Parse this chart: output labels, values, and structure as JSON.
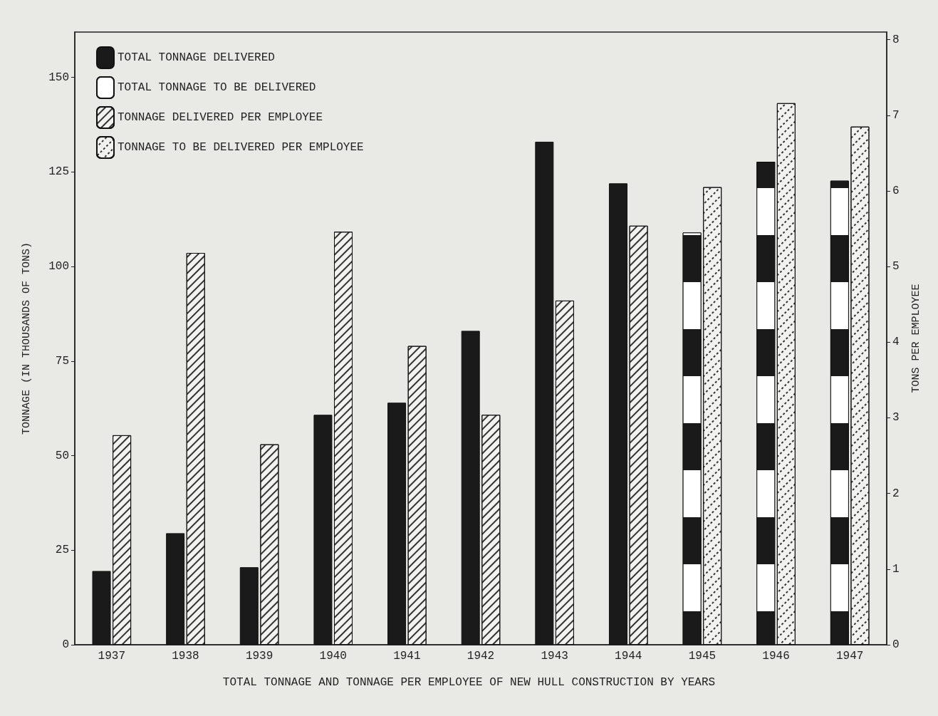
{
  "chart_data": {
    "type": "bar",
    "title": "TOTAL TONNAGE AND TONNAGE PER EMPLOYEE OF NEW HULL CONSTRUCTION BY YEARS",
    "ylabel": "TONNAGE (IN THOUSANDS OF TONS)",
    "y2label": "TONS PER EMPLOYEE",
    "categories": [
      "1937",
      "1938",
      "1939",
      "1940",
      "1941",
      "1942",
      "1943",
      "1944",
      "1945",
      "1946",
      "1947"
    ],
    "series": [
      {
        "name": "TOTAL TONNAGE DELIVERED",
        "color": "#1a1a1a",
        "values": [
          19.5,
          29.5,
          20.5,
          60.8,
          64,
          83,
          133,
          122,
          null,
          null,
          null
        ]
      },
      {
        "name": "TOTAL TONNAGE TO BE DELIVERED",
        "color": "#1a1a1a",
        "values": [
          null,
          null,
          null,
          null,
          null,
          null,
          null,
          null,
          109,
          127.7,
          122.7
        ]
      },
      {
        "name": "TONNAGE DELIVERED PER EMPLOYEE",
        "color": "#f2f2f0",
        "axis": "y2",
        "values": [
          2.77,
          5.18,
          2.65,
          5.46,
          3.95,
          3.04,
          4.55,
          5.54,
          null,
          null,
          null
        ]
      },
      {
        "name": "TONNAGE TO BE DELIVERED PER EMPLOYEE",
        "color": "#f2f2f0",
        "axis": "y2",
        "values": [
          null,
          null,
          null,
          null,
          null,
          null,
          null,
          null,
          6.05,
          7.16,
          6.85
        ]
      }
    ],
    "ylim": [
      0,
      162
    ],
    "yticks": [
      0,
      25,
      50,
      75,
      100,
      125,
      150
    ],
    "y2lim": [
      0,
      8.1
    ],
    "y2ticks": [
      0,
      1,
      2,
      3,
      4,
      5,
      6,
      7,
      8
    ],
    "grid": false,
    "legend": "top left"
  }
}
